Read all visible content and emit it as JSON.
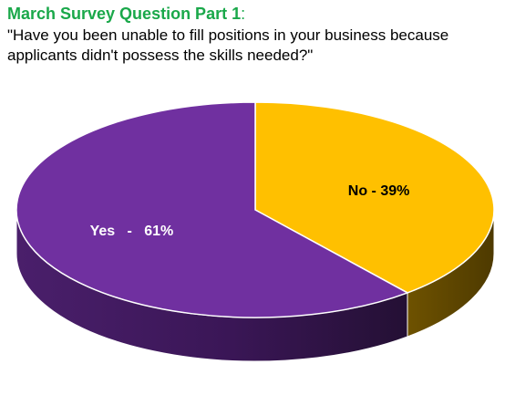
{
  "header": {
    "title": "March Survey Question Part 1",
    "title_suffix": ":",
    "question": "\"Have you been unable to fill positions in your business because applicants didn't possess the skills needed?\""
  },
  "colors": {
    "title": "#1aa84a",
    "yes": "#7030a0",
    "no": "#ffc000",
    "yes_label": "#ffffff",
    "no_label": "#000000"
  },
  "chart_data": {
    "type": "pie",
    "style": "3d",
    "slices": [
      {
        "label": "Yes",
        "value": 61,
        "text": "Yes   -   61%"
      },
      {
        "label": "No",
        "value": 39,
        "text": "No - 39%"
      }
    ]
  }
}
